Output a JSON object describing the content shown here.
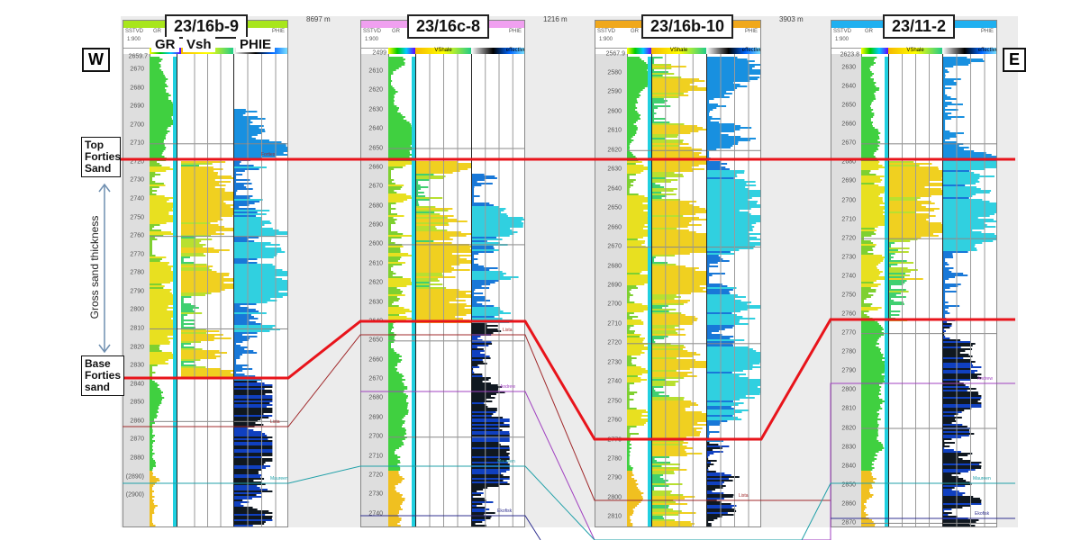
{
  "direction": {
    "west": "W",
    "east": "E"
  },
  "annotations": {
    "top_forties": "Top Forties Sand",
    "base_forties": "Base Forties sand",
    "gross_thickness": "Gross sand thickness"
  },
  "well1_track_labels": {
    "gr": "GR",
    "vsh": "Vsh",
    "phie": "PHIE"
  },
  "header_labels": {
    "depth": "SSTVD",
    "gr": "GR",
    "phie": "PHIE",
    "scale": "1:900",
    "vshale": "VShale",
    "effective": "effective"
  },
  "colors": {
    "top_bottom_line": "#e8141b",
    "lista": "#a0292b",
    "andrew": "#a040c0",
    "maureen": "#20a0a8",
    "ekofisk": "#303090"
  },
  "markers": {
    "forties": "Forties",
    "lista": "Lista",
    "andrew": "Andrew",
    "maureen": "Maureen",
    "ekofisk": "Ekofisk"
  },
  "wells": [
    {
      "name": "23/16b-9",
      "color": "#a8e61c",
      "distance_to_next": "8697 m",
      "top_depth": "2659.7",
      "ticks": [
        "2670",
        "2680",
        "2690",
        "2700",
        "2710",
        "2720",
        "2730",
        "2740",
        "2750",
        "2760",
        "2770",
        "2780",
        "2790",
        "2800",
        "2810",
        "2820",
        "2830",
        "2840",
        "2850",
        "2860",
        "2870",
        "2880",
        "(2890)",
        "(2900)"
      ]
    },
    {
      "name": "23/16c-8",
      "color": "#f0a0f0",
      "distance_to_next": "1216 m",
      "top_depth": "2499",
      "ticks": [
        "2610",
        "2620",
        "2630",
        "2640",
        "2650",
        "2660",
        "2670",
        "2680",
        "2690",
        "2600",
        "2610",
        "2620",
        "2630",
        "2640",
        "2650",
        "2660",
        "2670",
        "2680",
        "2690",
        "2700",
        "2710",
        "2720",
        "2730",
        "2740"
      ]
    },
    {
      "name": "23/16b-10",
      "color": "#f0a81c",
      "distance_to_next": "3903 m",
      "top_depth": "2567.9",
      "ticks": [
        "2580",
        "2590",
        "2600",
        "2610",
        "2620",
        "2630",
        "2640",
        "2650",
        "2660",
        "2670",
        "2680",
        "2690",
        "2700",
        "2710",
        "2720",
        "2730",
        "2740",
        "2750",
        "2760",
        "2770",
        "2780",
        "2790",
        "2800",
        "2810"
      ]
    },
    {
      "name": "23/11-2",
      "color": "#20b0f0",
      "top_depth": "2623.8",
      "ticks": [
        "2630",
        "2640",
        "2650",
        "2660",
        "2670",
        "2680",
        "2690",
        "2700",
        "2710",
        "2720",
        "2730",
        "2740",
        "2750",
        "2760",
        "2770",
        "2780",
        "2790",
        "2800",
        "2810",
        "2820",
        "2830",
        "2840",
        "2850",
        "2860",
        "2870"
      ]
    }
  ]
}
